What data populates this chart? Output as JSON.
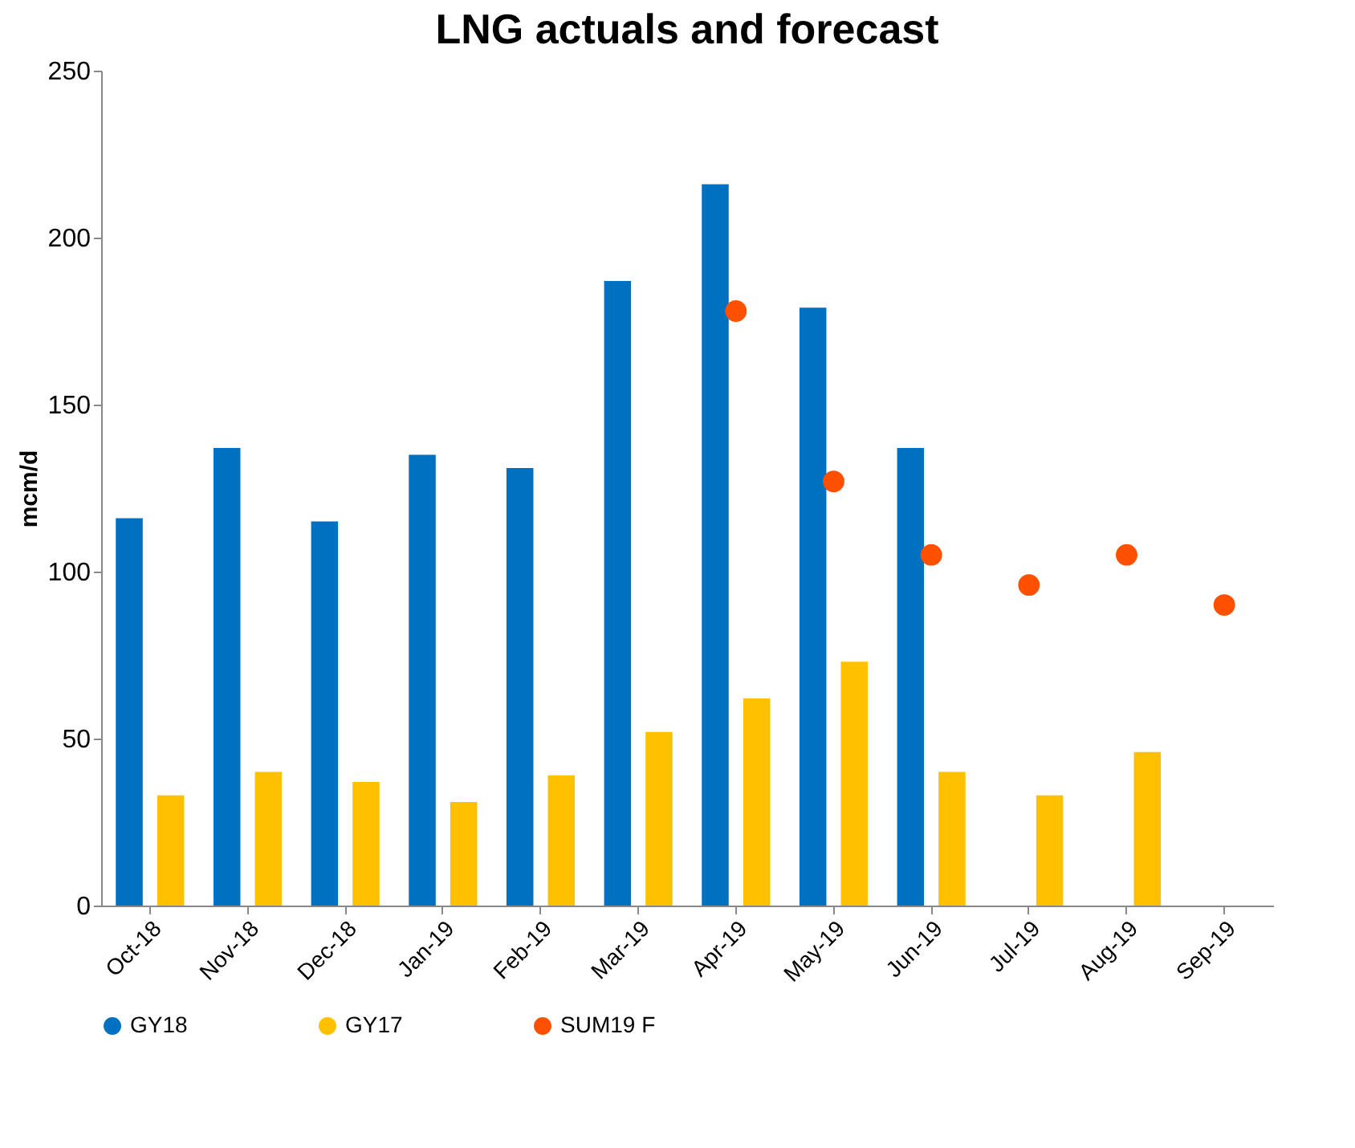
{
  "chart_data": {
    "type": "bar",
    "title": "LNG actuals and forecast",
    "ylabel": "mcm/d",
    "categories": [
      "Oct-18",
      "Nov-18",
      "Dec-18",
      "Jan-19",
      "Feb-19",
      "Mar-19",
      "Apr-19",
      "May-19",
      "Jun-19",
      "Jul-19",
      "Aug-19",
      "Sep-19"
    ],
    "series": [
      {
        "name": "GY18",
        "type": "bar",
        "color": "#0070c0",
        "values": [
          116,
          137,
          115,
          135,
          131,
          187,
          216,
          179,
          137,
          null,
          null,
          null
        ]
      },
      {
        "name": "GY17",
        "type": "bar",
        "color": "#ffc000",
        "values": [
          33,
          40,
          37,
          31,
          39,
          52,
          62,
          73,
          40,
          33,
          46,
          null
        ]
      },
      {
        "name": "SUM19 F",
        "type": "scatter",
        "marker": "circle",
        "color": "#ff5000",
        "values": [
          null,
          null,
          null,
          null,
          null,
          null,
          178,
          127,
          105,
          96,
          105,
          90
        ]
      }
    ],
    "ylim": [
      0,
      250
    ],
    "yticks": [
      0,
      50,
      100,
      150,
      200,
      250
    ],
    "legend": "bottom"
  }
}
